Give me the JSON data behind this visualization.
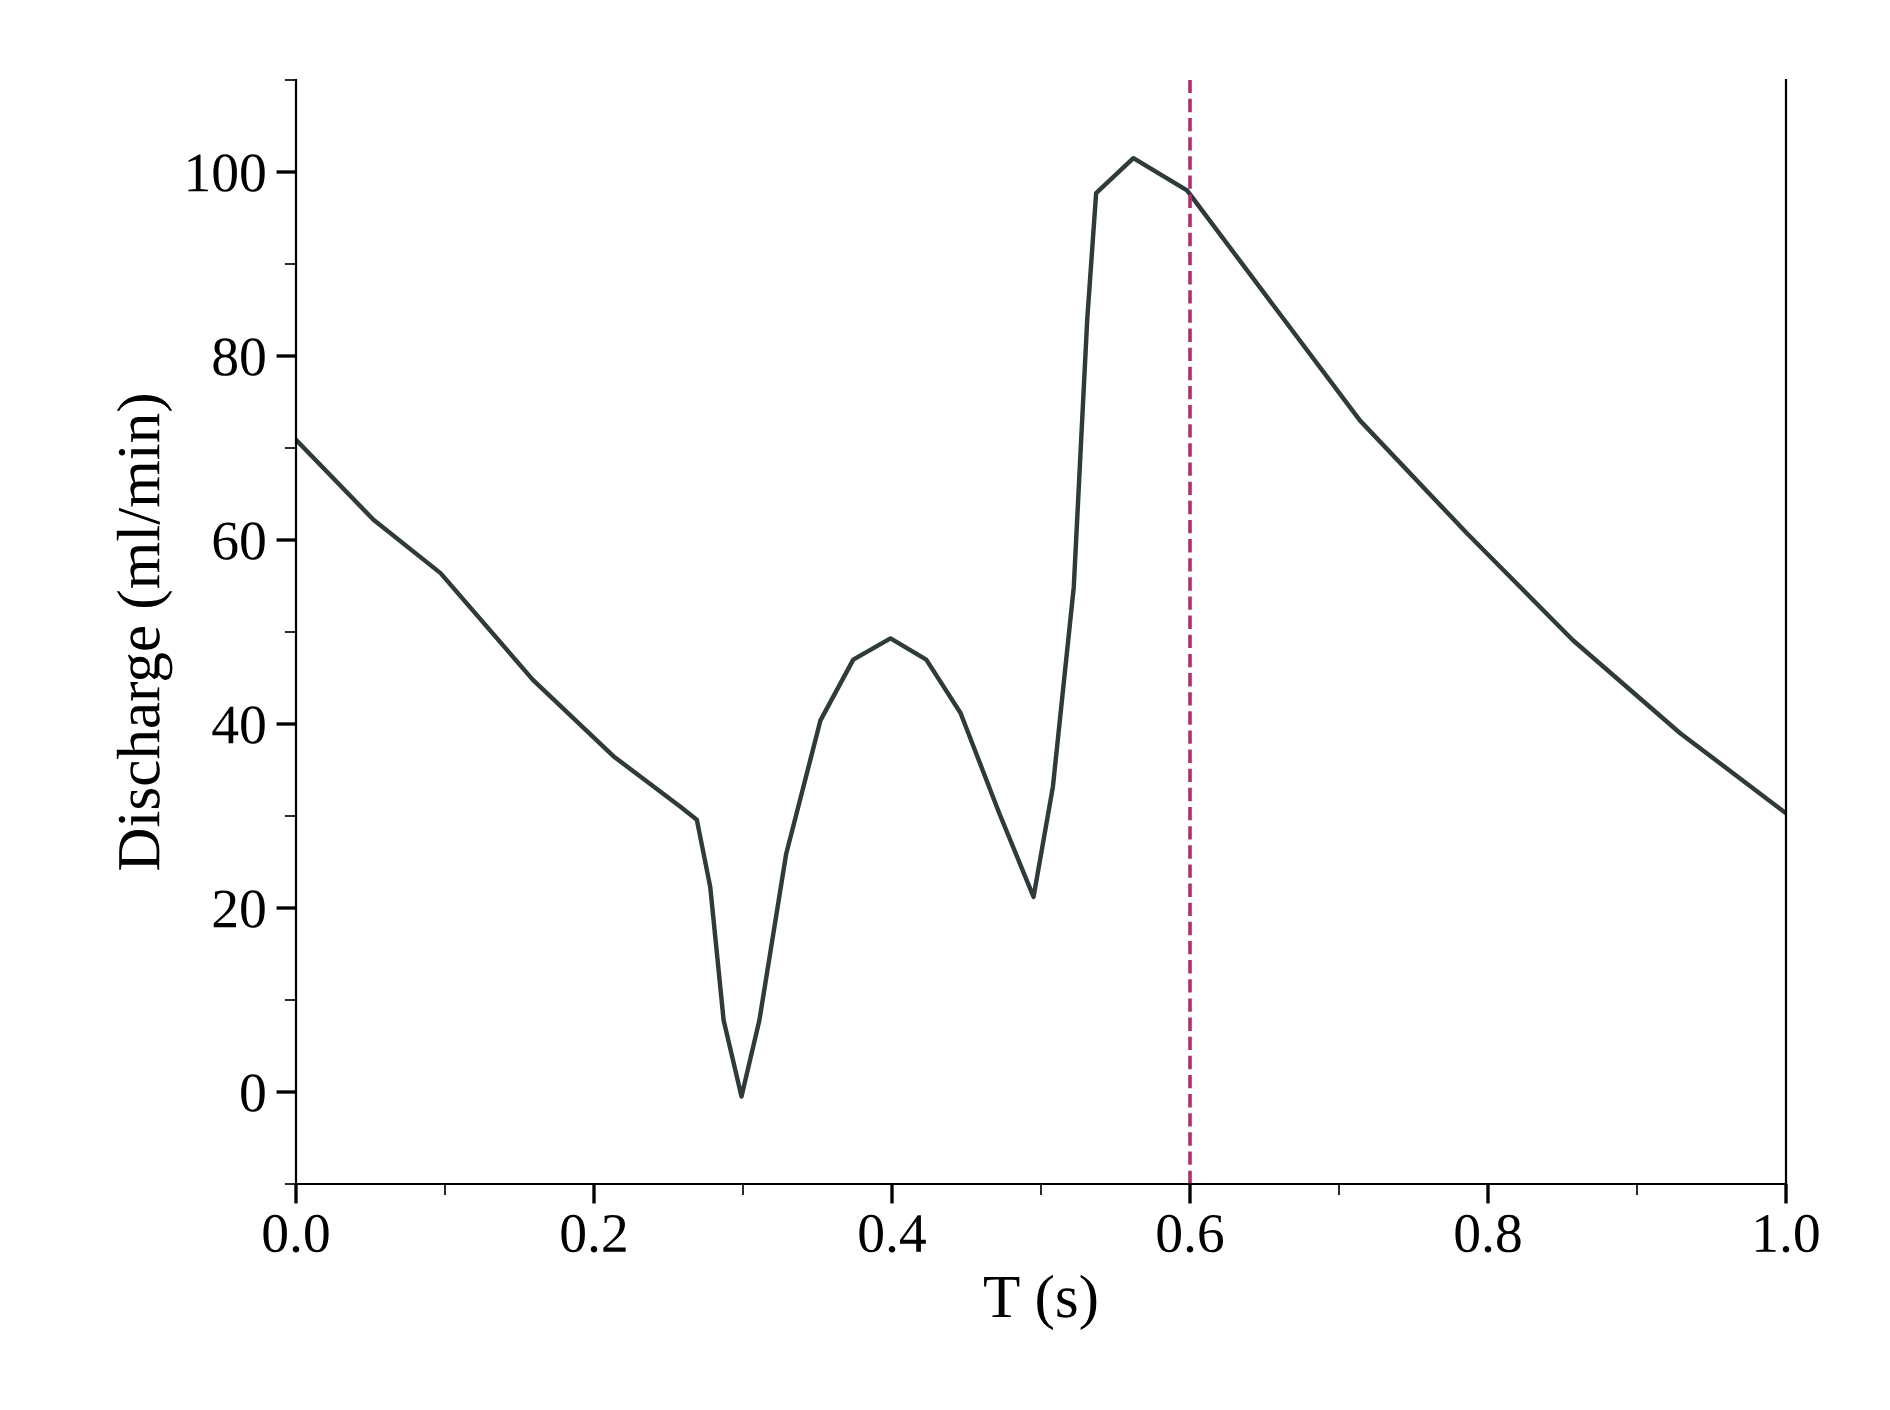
{
  "chart_data": {
    "type": "line",
    "xlabel": "T (s)",
    "ylabel": "Discharge (ml/min)",
    "xlim": [
      0,
      1.0
    ],
    "ylim": [
      -10,
      110
    ],
    "xticks": [
      {
        "value": 0,
        "label": "0.0"
      },
      0.2,
      0.4,
      0.6,
      0.8,
      {
        "value": 1.0,
        "label": "1.0"
      }
    ],
    "yticks": [
      0,
      20,
      40,
      60,
      80,
      100
    ],
    "grid": false,
    "legend": false,
    "ref_lines": [
      {
        "axis": "x",
        "value": 0.6,
        "color": "#b0306e",
        "line_style": "dashed"
      }
    ],
    "series": [
      {
        "color": "#2f3a3a",
        "x": [
          0,
          0.052,
          0.097,
          0.159,
          0.213,
          0.258,
          0.269,
          0.278,
          0.287,
          0.299,
          0.311,
          0.329,
          0.352,
          0.374,
          0.399,
          0.423,
          0.446,
          0.472,
          0.495,
          0.508,
          0.522,
          0.531,
          0.537,
          0.562,
          0.598,
          0.643,
          0.714,
          0.786,
          0.857,
          0.929,
          1.0
        ],
        "values": [
          70.9,
          62.2,
          56.4,
          44.8,
          36.5,
          31.0,
          29.6,
          22.3,
          7.8,
          -0.5,
          7.8,
          25.9,
          40.4,
          47.0,
          49.3,
          47.0,
          41.2,
          30.3,
          21.2,
          33.2,
          54.9,
          83.9,
          97.7,
          101.5,
          98.0,
          88.3,
          73.0,
          60.7,
          49.1,
          39.0,
          30.3
        ]
      }
    ]
  }
}
